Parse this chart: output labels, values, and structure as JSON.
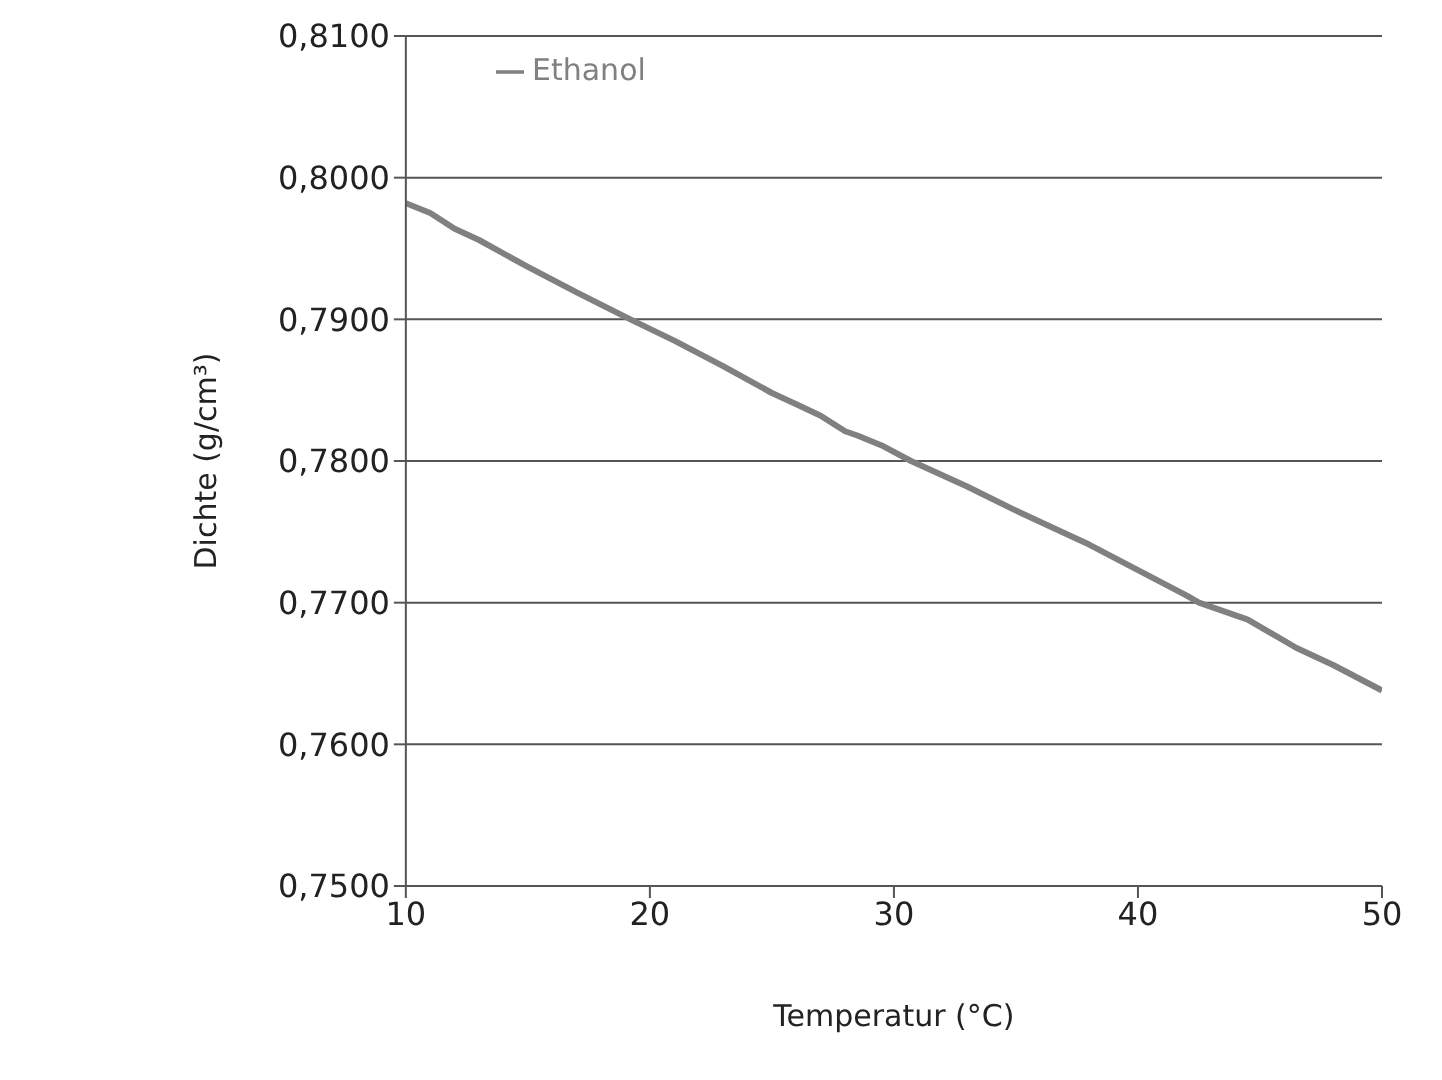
{
  "chart_data": {
    "type": "line",
    "xlabel": "Temperatur (°C)",
    "ylabel": "Dichte (g/cm³)",
    "x": [
      10,
      11,
      12,
      13,
      15,
      17,
      19.2,
      21,
      23,
      25,
      26,
      27,
      28,
      28.5,
      29.5,
      30.7,
      33,
      35,
      37,
      38,
      40,
      42,
      42.5,
      44.5,
      46.5,
      48,
      50
    ],
    "series": [
      {
        "name": "Ethanol",
        "color": "#808080",
        "values": [
          0.7982,
          0.7975,
          0.7964,
          0.7956,
          0.7937,
          0.7919,
          0.79,
          0.7885,
          0.7867,
          0.7848,
          0.784,
          0.7832,
          0.7821,
          0.7818,
          0.7811,
          0.78,
          0.7782,
          0.7765,
          0.7749,
          0.7741,
          0.7723,
          0.7705,
          0.77,
          0.7688,
          0.7668,
          0.7656,
          0.7638
        ]
      }
    ],
    "xlim": [
      10,
      50
    ],
    "xticks": [
      10,
      20,
      30,
      40,
      50
    ],
    "ylim": [
      0.75,
      0.81
    ],
    "yticks": [
      {
        "value": 0.75,
        "label": "0,7500"
      },
      {
        "value": 0.76,
        "label": "0,7600"
      },
      {
        "value": 0.77,
        "label": "0,7700"
      },
      {
        "value": 0.78,
        "label": "0,7800"
      },
      {
        "value": 0.79,
        "label": "0,7900"
      },
      {
        "value": 0.8,
        "label": "0,8000"
      },
      {
        "value": 0.81,
        "label": "0,8100"
      }
    ],
    "grid": "y",
    "legend": "top left",
    "marker": "none",
    "line_style": "solid"
  }
}
